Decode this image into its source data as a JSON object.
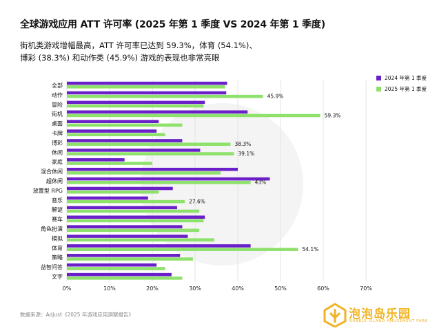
{
  "title": "全球游戏应用 ATT 许可率 (2025 年第 1 季度 VS 2024 年第 1 季度)",
  "subtitle_lines": [
    "街机类游戏增幅最高，ATT 许可率已达到 59.3%，体育 (54.1%)、",
    "博彩 (38.3%) 和动作类 (45.9%) 游戏的表现也非常亮眼"
  ],
  "source": "数据来源：Adjust《2025 年游戏应用洞察报告》",
  "logo": {
    "name": "泡泡岛乐园",
    "sub": "BUBBLE ISLAND AMUSEMENT PARK",
    "color": "#f0b323"
  },
  "chart_data": {
    "type": "bar",
    "orientation": "horizontal",
    "categories": [
      "全部",
      "动作",
      "冒险",
      "街机",
      "桌面",
      "卡牌",
      "博彩",
      "休闲",
      "家庭",
      "混合休闲",
      "超休闲",
      "放置型 RPG",
      "音乐",
      "解谜",
      "赛车",
      "角色扮演",
      "模拟",
      "体育",
      "策略",
      "益智问答",
      "文字"
    ],
    "series": [
      {
        "name": "2024 年第 1 季度",
        "color": "#6a1fc8",
        "values": [
          37.5,
          37.3,
          32.3,
          42.3,
          21.5,
          21.0,
          27.0,
          31.2,
          13.5,
          40.0,
          47.5,
          24.8,
          19.0,
          25.8,
          32.3,
          27.0,
          28.3,
          43.0,
          26.5,
          21.0,
          24.5
        ]
      },
      {
        "name": "2025 年第 1 季度",
        "color": "#8ee16b",
        "values": [
          37.0,
          45.9,
          32.0,
          59.3,
          27.0,
          23.0,
          38.3,
          39.1,
          20.0,
          36.0,
          43.0,
          21.5,
          27.6,
          31.0,
          32.0,
          31.0,
          34.5,
          54.1,
          29.5,
          23.0,
          27.0
        ]
      }
    ],
    "data_labels": [
      {
        "category": "动作",
        "series": 1,
        "text": "45.9%"
      },
      {
        "category": "街机",
        "series": 1,
        "text": "59.3%"
      },
      {
        "category": "博彩",
        "series": 1,
        "text": "38.3%"
      },
      {
        "category": "休闲",
        "series": 1,
        "text": "39.1%"
      },
      {
        "category": "超休闲",
        "series": 1,
        "text": "43%"
      },
      {
        "category": "音乐",
        "series": 1,
        "text": "27.6%"
      },
      {
        "category": "体育",
        "series": 1,
        "text": "54.1%"
      }
    ],
    "x_ticks": [
      "0%",
      "10%",
      "20%",
      "30%",
      "40%",
      "50%",
      "60%",
      "70%"
    ],
    "xlim": [
      0,
      70
    ],
    "grid": true,
    "legend_position": "top-right"
  }
}
